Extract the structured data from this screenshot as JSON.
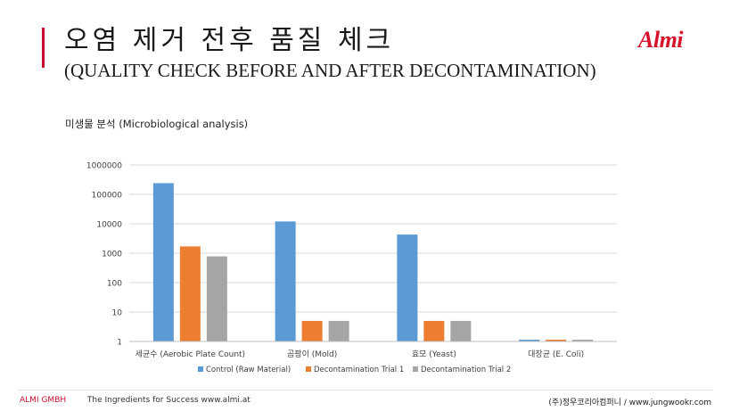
{
  "header": {
    "title_ko": "오염 제거 전후 품질 체크",
    "title_en": "(QUALITY CHECK BEFORE AND AFTER DECONTAMINATION)",
    "logo_text": "Almi",
    "accent_color": "#c8102e"
  },
  "section_label": "미생물 분석 (Microbiological analysis)",
  "chart_data": {
    "type": "bar",
    "yscale": "log",
    "ylim": [
      1,
      1000000
    ],
    "y_ticks": [
      "1000000",
      "100000",
      "10000",
      "1000",
      "100",
      "10",
      "1"
    ],
    "grid": true,
    "legend_position": "bottom",
    "categories": [
      "세균수 (Aerobic Plate Count)",
      "곰팡이 (Mold)",
      "효모 (Yeast)",
      "대장균 (E. Coli)"
    ],
    "series": [
      {
        "name": "Control (Raw Material)",
        "color": "#5b9bd5",
        "values": [
          240000,
          12000,
          4300,
          1
        ]
      },
      {
        "name": "Decontamination Trial 1",
        "color": "#ed7d31",
        "values": [
          1700,
          5,
          5,
          1
        ]
      },
      {
        "name": "Decontamination Trial 2",
        "color": "#a5a5a5",
        "values": [
          780,
          5,
          5,
          1
        ]
      }
    ]
  },
  "footer": {
    "company": "ALMI GMBH",
    "tagline": "The Ingredients for Success",
    "website": "www.almi.at",
    "right_text": "(주)정우코리아컴퍼니 / www.jungwookr.com"
  }
}
